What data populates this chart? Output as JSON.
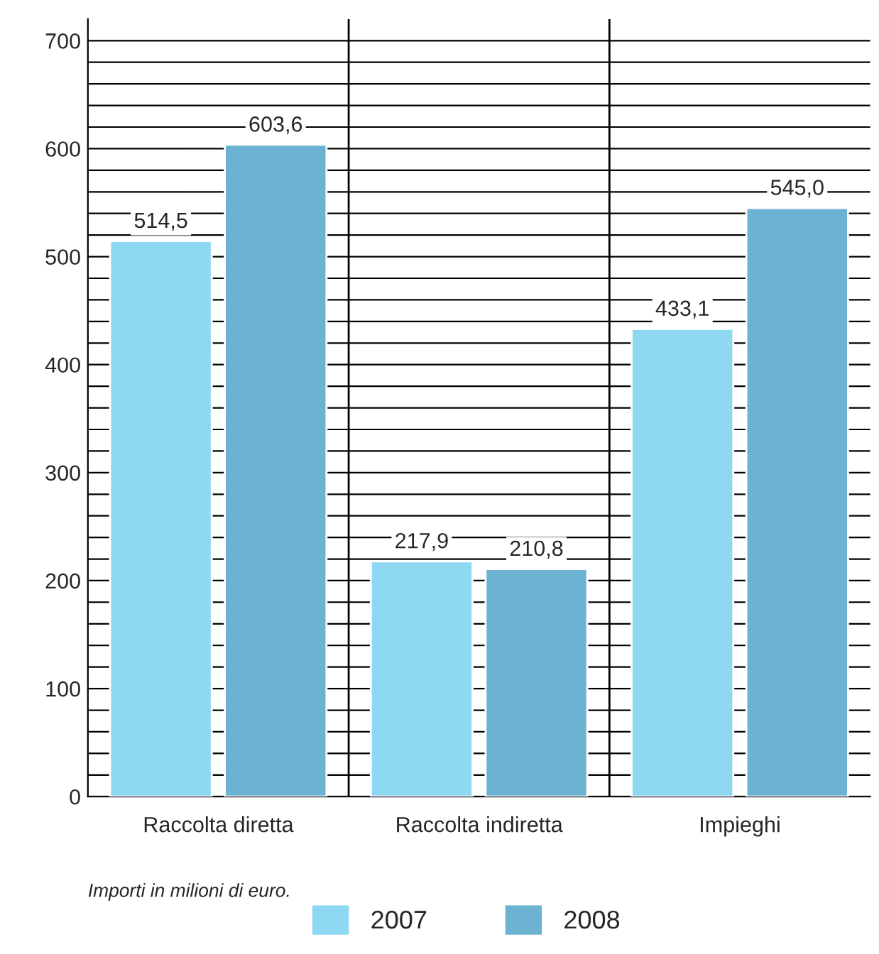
{
  "chart_data": {
    "type": "bar",
    "categories": [
      "Raccolta diretta",
      "Raccolta indiretta",
      "Impieghi"
    ],
    "series": [
      {
        "name": "2007",
        "color": "#8fd8f4",
        "values": [
          514.5,
          217.9,
          433.1
        ]
      },
      {
        "name": "2008",
        "color": "#6cb2d2",
        "values": [
          603.6,
          210.8,
          545.0
        ]
      }
    ],
    "value_labels": [
      [
        "514,5",
        "217,9",
        "433,1"
      ],
      [
        "603,6",
        "210,8",
        "545,0"
      ]
    ],
    "ylim": [
      0,
      720
    ],
    "yticks": [
      0,
      {
        "value": 20,
        "label": null
      },
      {
        "value": 40,
        "label": null
      },
      {
        "value": 60,
        "label": null
      },
      {
        "value": 80,
        "label": null
      },
      100,
      {
        "value": 120,
        "label": null
      },
      {
        "value": 140,
        "label": null
      },
      {
        "value": 160,
        "label": null
      },
      {
        "value": 180,
        "label": null
      },
      200,
      {
        "value": 220,
        "label": null
      },
      {
        "value": 240,
        "label": null
      },
      {
        "value": 260,
        "label": null
      },
      {
        "value": 280,
        "label": null
      },
      300,
      {
        "value": 320,
        "label": null
      },
      {
        "value": 340,
        "label": null
      },
      {
        "value": 360,
        "label": null
      },
      {
        "value": 380,
        "label": null
      },
      400,
      {
        "value": 420,
        "label": null
      },
      {
        "value": 440,
        "label": null
      },
      {
        "value": 460,
        "label": null
      },
      {
        "value": 480,
        "label": null
      },
      500,
      {
        "value": 520,
        "label": null
      },
      {
        "value": 540,
        "label": null
      },
      {
        "value": 560,
        "label": null
      },
      {
        "value": 580,
        "label": null
      },
      600,
      {
        "value": 620,
        "label": null
      },
      {
        "value": 640,
        "label": null
      },
      {
        "value": 660,
        "label": null
      },
      {
        "value": 680,
        "label": null
      },
      700
    ],
    "grid": "y",
    "legend": "bottom",
    "annotations": [
      "Importi in milioni di euro."
    ]
  }
}
